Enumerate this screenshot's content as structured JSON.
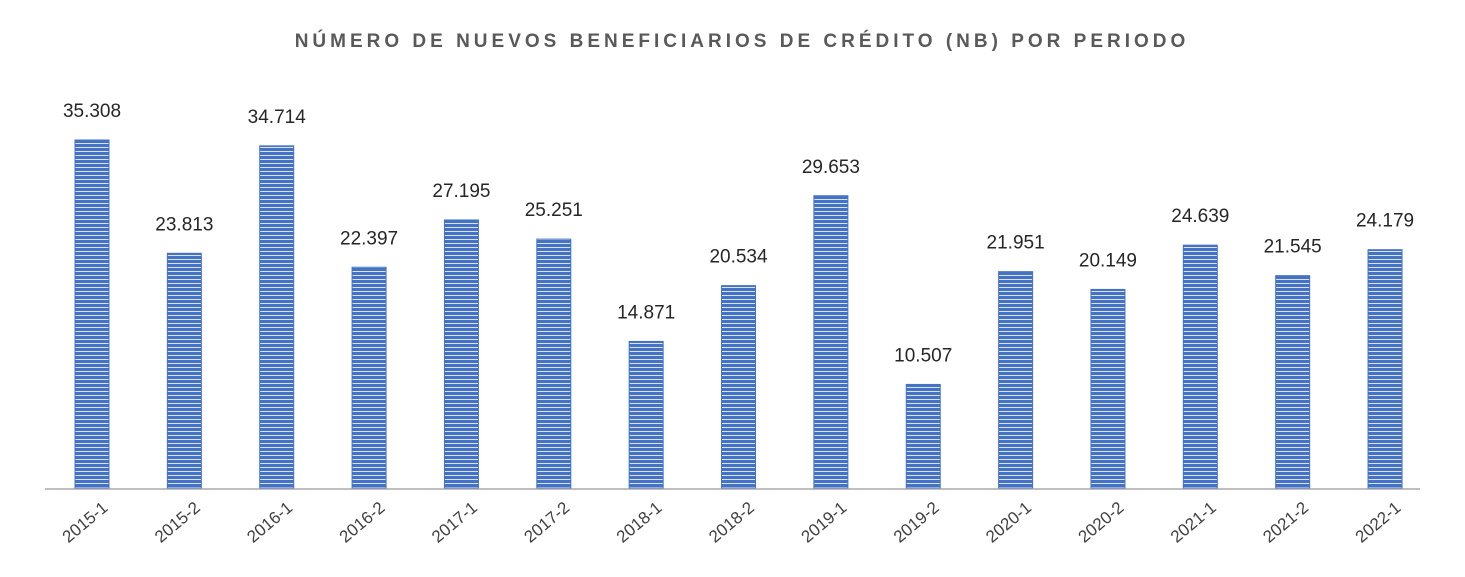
{
  "chart_data": {
    "type": "bar",
    "title": "NÚMERO DE NUEVOS BENEFICIARIOS DE CRÉDITO (NB) POR PERIODO",
    "categories": [
      "2015-1",
      "2015-2",
      "2016-1",
      "2016-2",
      "2017-1",
      "2017-2",
      "2018-1",
      "2018-2",
      "2019-1",
      "2019-2",
      "2020-1",
      "2020-2",
      "2021-1",
      "2021-2",
      "2022-1"
    ],
    "values": [
      35308,
      23813,
      34714,
      22397,
      27195,
      25251,
      14871,
      20534,
      29653,
      10507,
      21951,
      20149,
      24639,
      21545,
      24179
    ],
    "value_labels": [
      "35.308",
      "23.813",
      "34.714",
      "22.397",
      "27.195",
      "25.251",
      "14.871",
      "20.534",
      "29.653",
      "10.507",
      "21.951",
      "20.149",
      "24.639",
      "21.545",
      "24.179"
    ],
    "color": "#4472c4"
  }
}
